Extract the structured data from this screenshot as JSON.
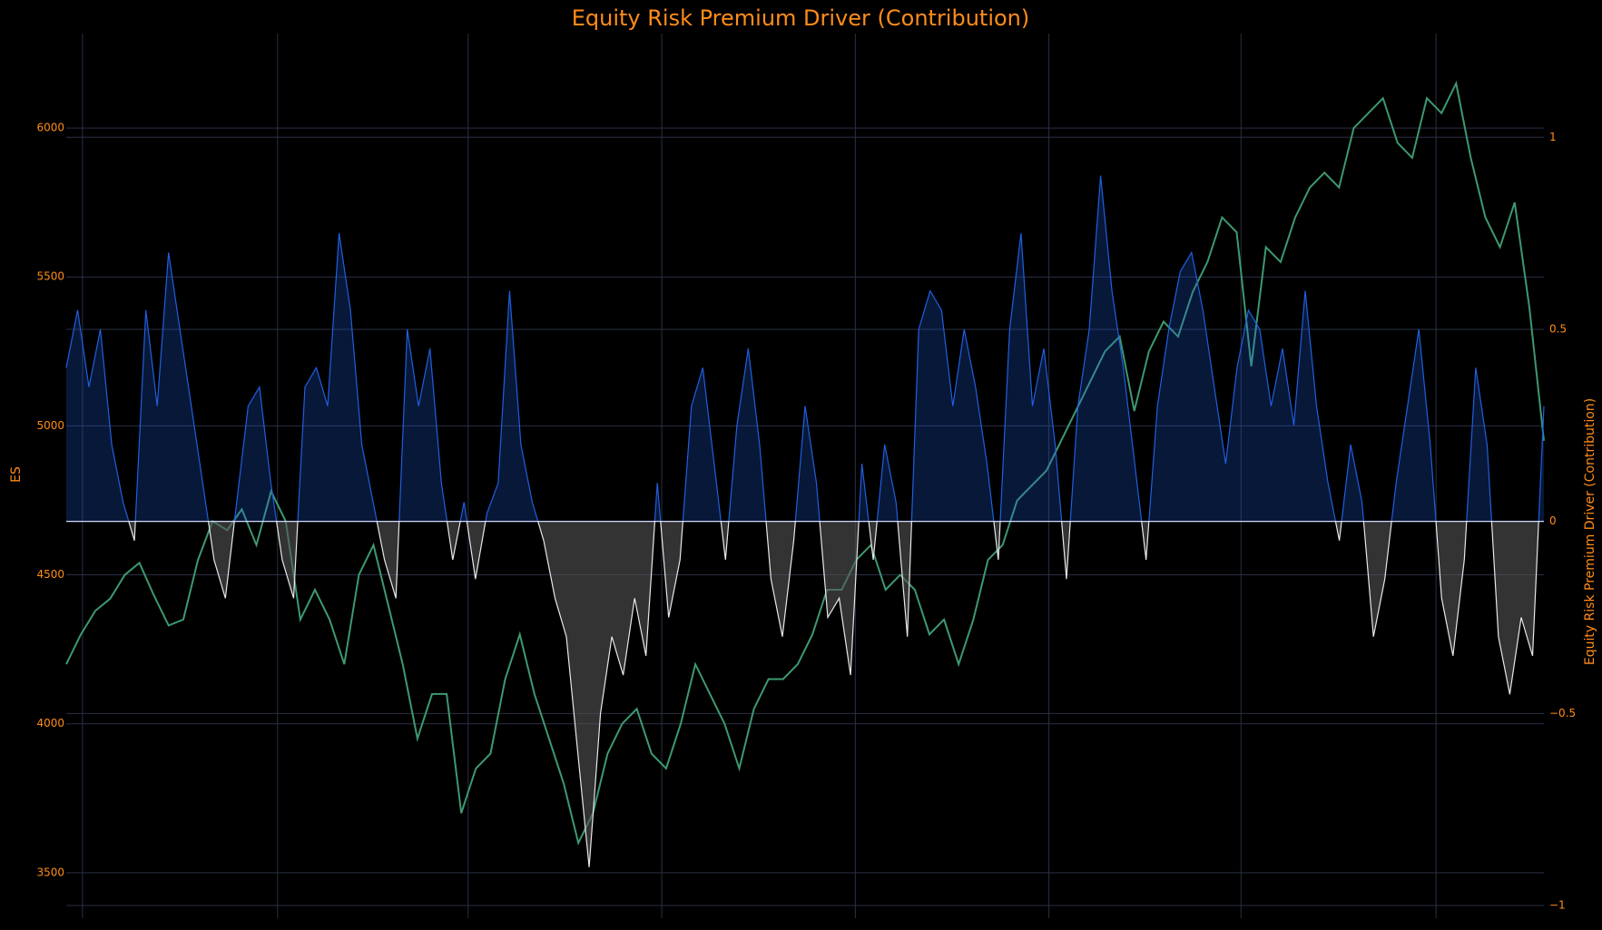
{
  "chart_data": {
    "type": "line",
    "title": "Equity Risk Premium Driver (Contribution)",
    "y_label": "ES",
    "y2_label": "Equity Risk Premium Driver (Contribution)",
    "ylim": [
      3390,
      6317
    ],
    "yticks": [
      3500,
      4000,
      4500,
      5000,
      5500,
      6000
    ],
    "y2lim": [
      -1,
      1.27
    ],
    "y2ticks": [
      {
        "value": -1,
        "label": "−1"
      },
      {
        "value": -0.5,
        "label": "−0.5"
      },
      0,
      0.5,
      1
    ],
    "grid": true,
    "series": [
      {
        "name": "ES",
        "color": "#3d9970",
        "values": [
          4200,
          4300,
          4380,
          4420,
          4500,
          4540,
          4430,
          4330,
          4350,
          4550,
          4680,
          4650,
          4720,
          4600,
          4780,
          4680,
          4350,
          4450,
          4350,
          4200,
          4500,
          4600,
          4400,
          4200,
          3950,
          4100,
          4100,
          3700,
          3850,
          3900,
          4150,
          4300,
          4100,
          3950,
          3800,
          3600,
          3700,
          3900,
          4000,
          4050,
          3900,
          3850,
          4000,
          4200,
          4100,
          4000,
          3850,
          4050,
          4150,
          4150,
          4200,
          4300,
          4450,
          4450,
          4550,
          4600,
          4450,
          4500,
          4450,
          4300,
          4350,
          4200,
          4350,
          4550,
          4600,
          4750,
          4800,
          4850,
          4950,
          5050,
          5150,
          5250,
          5300,
          5050,
          5250,
          5350,
          5300,
          5450,
          5550,
          5700,
          5650,
          5200,
          5600,
          5550,
          5700,
          5800,
          5850,
          5800,
          6000,
          6050,
          6100,
          5950,
          5900,
          6100,
          6050,
          6150,
          5900,
          5700,
          5600,
          5750,
          5400,
          4950
        ]
      },
      {
        "name": "Equity Risk Premium Driver (Contribution)",
        "color": "#1f5fe0",
        "negative_color": "#e8e8e8",
        "axis": "y2",
        "values": [
          0.4,
          0.55,
          0.35,
          0.5,
          0.2,
          0.05,
          -0.05,
          0.55,
          0.3,
          0.7,
          0.5,
          0.3,
          0.1,
          -0.1,
          -0.2,
          0.05,
          0.3,
          0.35,
          0.1,
          -0.1,
          -0.2,
          0.35,
          0.4,
          0.3,
          0.75,
          0.55,
          0.2,
          0.05,
          -0.1,
          -0.2,
          0.5,
          0.3,
          0.45,
          0.1,
          -0.1,
          0.05,
          -0.15,
          0.02,
          0.1,
          0.6,
          0.2,
          0.05,
          -0.05,
          -0.2,
          -0.3,
          -0.6,
          -0.9,
          -0.5,
          -0.3,
          -0.4,
          -0.2,
          -0.35,
          0.1,
          -0.25,
          -0.1,
          0.3,
          0.4,
          0.15,
          -0.1,
          0.25,
          0.45,
          0.2,
          -0.15,
          -0.3,
          -0.05,
          0.3,
          0.1,
          -0.25,
          -0.2,
          -0.4,
          0.15,
          -0.1,
          0.2,
          0.05,
          -0.3,
          0.5,
          0.6,
          0.55,
          0.3,
          0.5,
          0.35,
          0.15,
          -0.1,
          0.5,
          0.75,
          0.3,
          0.45,
          0.2,
          -0.15,
          0.3,
          0.5,
          0.9,
          0.6,
          0.4,
          0.15,
          -0.1,
          0.3,
          0.5,
          0.65,
          0.7,
          0.55,
          0.35,
          0.15,
          0.4,
          0.55,
          0.5,
          0.3,
          0.45,
          0.25,
          0.6,
          0.3,
          0.1,
          -0.05,
          0.2,
          0.05,
          -0.3,
          -0.15,
          0.1,
          0.3,
          0.5,
          0.2,
          -0.2,
          -0.35,
          -0.1,
          0.4,
          0.2,
          -0.3,
          -0.45,
          -0.25,
          -0.35,
          0.3
        ]
      }
    ]
  }
}
